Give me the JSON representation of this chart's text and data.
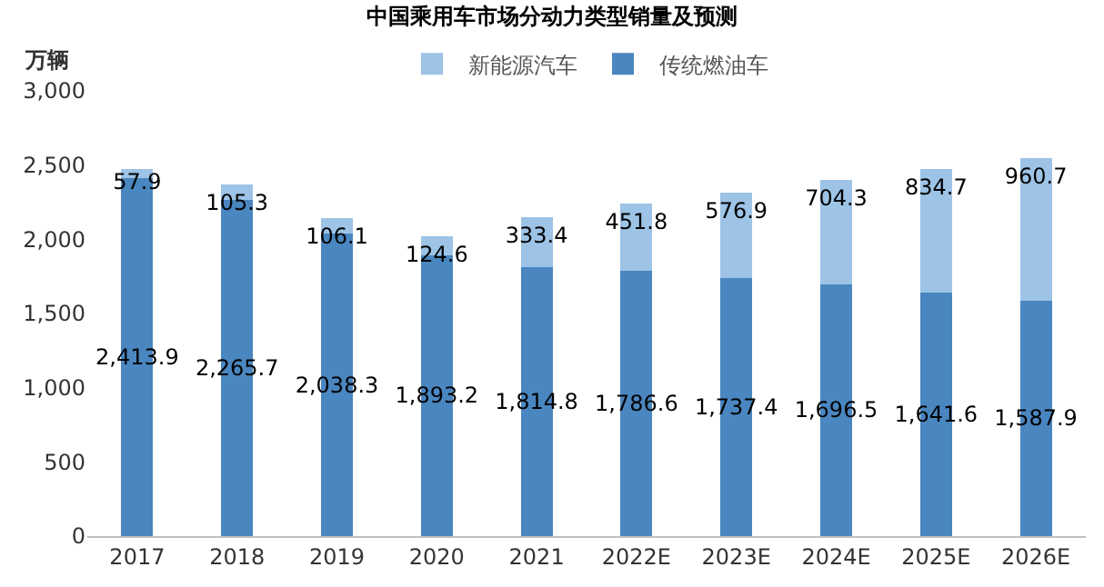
{
  "chart_data": {
    "type": "bar",
    "title": "中国乘用车市场分动力类型销量及预测",
    "ylabel": "万辆",
    "categories": [
      "2017",
      "2018",
      "2019",
      "2020",
      "2021",
      "2022E",
      "2023E",
      "2024E",
      "2025E",
      "2026E"
    ],
    "stacked": true,
    "legend": "top",
    "grid": false,
    "ylim": [
      0,
      3000
    ],
    "yticks": [
      0,
      500,
      {
        "value": 1000,
        "label": "1,000"
      },
      {
        "value": 1500,
        "label": "1,500"
      },
      {
        "value": 2000,
        "label": "2,000"
      },
      {
        "value": 2500,
        "label": "2,500"
      },
      {
        "value": 3000,
        "label": "3,000"
      }
    ],
    "series": [
      {
        "name": "传统燃油车",
        "color": "#4a86c0",
        "values": [
          2413.9,
          2265.7,
          2038.3,
          1893.2,
          1814.8,
          1786.6,
          1737.4,
          1696.5,
          1641.6,
          1587.9
        ],
        "value_labels": [
          "2,413.9",
          "2,265.7",
          "2,038.3",
          "1,893.2",
          "1,814.8",
          "1,786.6",
          "1,737.4",
          "1,696.5",
          "1,641.6",
          "1,587.9"
        ]
      },
      {
        "name": "新能源汽车",
        "color": "#9dc3e6",
        "values": [
          57.9,
          105.3,
          106.1,
          124.6,
          333.4,
          451.8,
          576.9,
          704.3,
          834.7,
          960.7
        ],
        "value_labels": [
          "57.9",
          "105.3",
          "106.1",
          "124.6",
          "333.4",
          "451.8",
          "576.9",
          "704.3",
          "834.7",
          "960.7"
        ]
      }
    ]
  }
}
